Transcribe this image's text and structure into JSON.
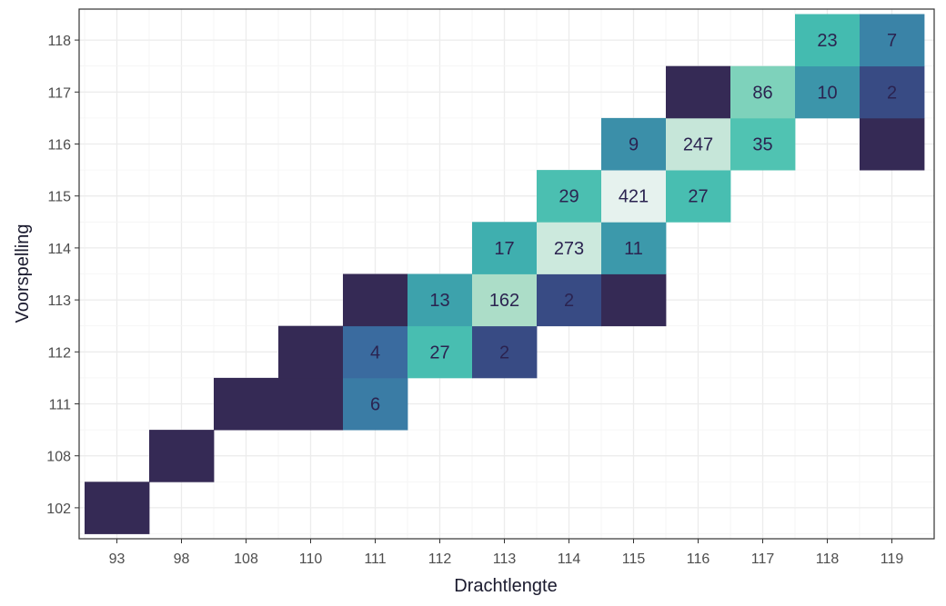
{
  "chart_data": {
    "type": "heatmap",
    "xlabel": "Drachtlengte",
    "ylabel": "Voorspelling",
    "x_categories": [
      "93",
      "98",
      "108",
      "110",
      "111",
      "112",
      "113",
      "114",
      "115",
      "116",
      "117",
      "118",
      "119"
    ],
    "y_categories": [
      "102",
      "108",
      "111",
      "112",
      "113",
      "114",
      "115",
      "116",
      "117",
      "118"
    ],
    "grid": true,
    "colors": {
      "low": "#352a55",
      "scale": [
        "#352a55",
        "#3a5a9a",
        "#3a86a8",
        "#40b9b0",
        "#5fcbb3",
        "#a9dcc6",
        "#e6f2ee"
      ],
      "label": "#2b2350",
      "panel_border": "#333333",
      "grid": "#ececec"
    },
    "cells": [
      {
        "x": "93",
        "y": "102",
        "count": 1,
        "label": ""
      },
      {
        "x": "98",
        "y": "108",
        "count": 1,
        "label": ""
      },
      {
        "x": "108",
        "y": "111",
        "count": 1,
        "label": ""
      },
      {
        "x": "110",
        "y": "111",
        "count": 1,
        "label": ""
      },
      {
        "x": "110",
        "y": "112",
        "count": 1,
        "label": ""
      },
      {
        "x": "111",
        "y": "111",
        "count": 6,
        "label": "6"
      },
      {
        "x": "111",
        "y": "112",
        "count": 4,
        "label": "4"
      },
      {
        "x": "111",
        "y": "113",
        "count": 1,
        "label": ""
      },
      {
        "x": "112",
        "y": "112",
        "count": 27,
        "label": "27"
      },
      {
        "x": "112",
        "y": "113",
        "count": 13,
        "label": "13"
      },
      {
        "x": "113",
        "y": "112",
        "count": 2,
        "label": "2"
      },
      {
        "x": "113",
        "y": "113",
        "count": 162,
        "label": "162"
      },
      {
        "x": "113",
        "y": "114",
        "count": 17,
        "label": "17"
      },
      {
        "x": "114",
        "y": "113",
        "count": 2,
        "label": "2"
      },
      {
        "x": "114",
        "y": "114",
        "count": 273,
        "label": "273"
      },
      {
        "x": "114",
        "y": "115",
        "count": 29,
        "label": "29"
      },
      {
        "x": "115",
        "y": "113",
        "count": 1,
        "label": ""
      },
      {
        "x": "115",
        "y": "114",
        "count": 11,
        "label": "11"
      },
      {
        "x": "115",
        "y": "115",
        "count": 421,
        "label": "421"
      },
      {
        "x": "115",
        "y": "116",
        "count": 9,
        "label": "9"
      },
      {
        "x": "116",
        "y": "115",
        "count": 27,
        "label": "27"
      },
      {
        "x": "116",
        "y": "116",
        "count": 247,
        "label": "247"
      },
      {
        "x": "116",
        "y": "117",
        "count": 1,
        "label": ""
      },
      {
        "x": "117",
        "y": "116",
        "count": 35,
        "label": "35"
      },
      {
        "x": "117",
        "y": "117",
        "count": 86,
        "label": "86"
      },
      {
        "x": "118",
        "y": "117",
        "count": 10,
        "label": "10"
      },
      {
        "x": "118",
        "y": "118",
        "count": 23,
        "label": "23"
      },
      {
        "x": "119",
        "y": "116",
        "count": 1,
        "label": ""
      },
      {
        "x": "119",
        "y": "117",
        "count": 2,
        "label": "2"
      },
      {
        "x": "119",
        "y": "118",
        "count": 7,
        "label": "7"
      }
    ]
  }
}
